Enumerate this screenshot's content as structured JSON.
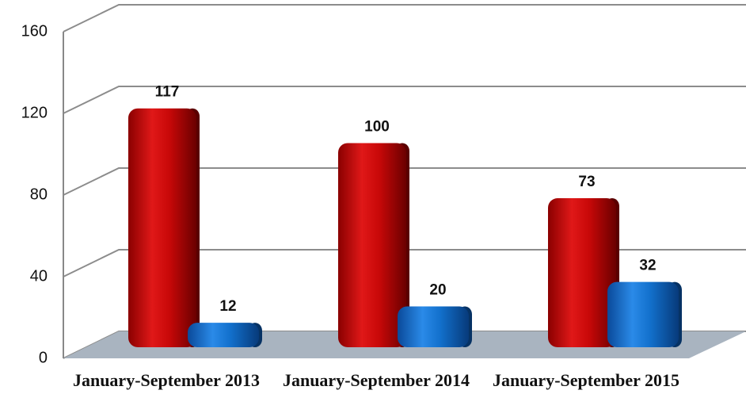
{
  "chart_data": {
    "type": "bar",
    "categories": [
      "January-September 2013",
      "January-September 2014",
      "January-September 2015"
    ],
    "series": [
      {
        "color": "#d40d0d",
        "values": [
          117,
          100,
          73
        ]
      },
      {
        "color": "#1878d8",
        "values": [
          12,
          20,
          32
        ]
      }
    ],
    "ylim": [
      0,
      160
    ],
    "yticks": [
      0,
      40,
      80,
      120,
      160
    ],
    "grid": true
  }
}
